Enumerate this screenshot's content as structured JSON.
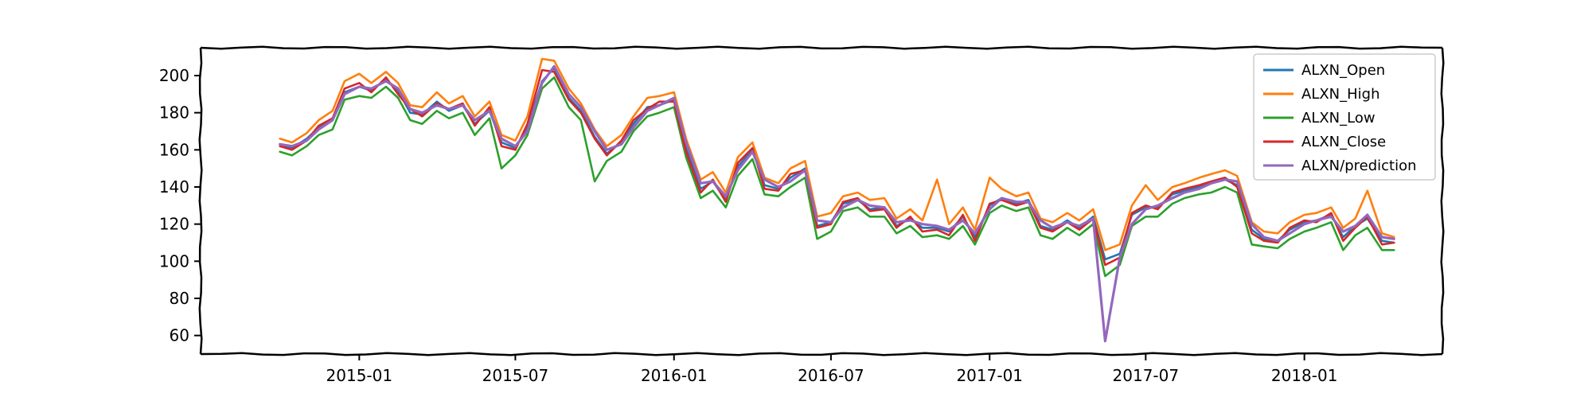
{
  "chart_data": {
    "type": "line",
    "title": "",
    "xlabel": "",
    "ylabel": "",
    "x_type": "date",
    "xlim": [
      "2014-07-01",
      "2018-06-10"
    ],
    "ylim": [
      50,
      215
    ],
    "x_ticks": [
      "2015-01",
      "2015-07",
      "2016-01",
      "2016-07",
      "2017-01",
      "2017-07",
      "2018-01"
    ],
    "y_ticks": [
      60,
      80,
      100,
      120,
      140,
      160,
      180,
      200
    ],
    "grid": false,
    "legend": {
      "position": "top-right"
    },
    "x": [
      "2014-10-01",
      "2014-10-15",
      "2014-11-01",
      "2014-11-15",
      "2014-12-01",
      "2014-12-15",
      "2015-01-01",
      "2015-01-15",
      "2015-02-01",
      "2015-02-15",
      "2015-03-01",
      "2015-03-15",
      "2015-04-01",
      "2015-04-15",
      "2015-05-01",
      "2015-05-15",
      "2015-06-01",
      "2015-06-15",
      "2015-07-01",
      "2015-07-15",
      "2015-08-01",
      "2015-08-15",
      "2015-09-01",
      "2015-09-15",
      "2015-10-01",
      "2015-10-15",
      "2015-11-01",
      "2015-11-15",
      "2015-12-01",
      "2015-12-15",
      "2016-01-01",
      "2016-01-15",
      "2016-02-01",
      "2016-02-15",
      "2016-03-01",
      "2016-03-15",
      "2016-04-01",
      "2016-04-15",
      "2016-05-01",
      "2016-05-15",
      "2016-06-01",
      "2016-06-15",
      "2016-07-01",
      "2016-07-15",
      "2016-08-01",
      "2016-08-15",
      "2016-09-01",
      "2016-09-15",
      "2016-10-01",
      "2016-10-15",
      "2016-11-01",
      "2016-11-15",
      "2016-12-01",
      "2016-12-15",
      "2017-01-01",
      "2017-01-15",
      "2017-02-01",
      "2017-02-15",
      "2017-03-01",
      "2017-03-15",
      "2017-04-01",
      "2017-04-15",
      "2017-05-01",
      "2017-05-15",
      "2017-06-01",
      "2017-06-15",
      "2017-07-01",
      "2017-07-15",
      "2017-08-01",
      "2017-08-15",
      "2017-09-01",
      "2017-09-15",
      "2017-10-01",
      "2017-10-15",
      "2017-11-01",
      "2017-11-15",
      "2017-12-01",
      "2017-12-15",
      "2018-01-01",
      "2018-01-15",
      "2018-02-01",
      "2018-02-15",
      "2018-03-01",
      "2018-03-15",
      "2018-04-01",
      "2018-04-15"
    ],
    "series": [
      {
        "name": "ALXN_Open",
        "color": "#1f77b4",
        "values": [
          163,
          161,
          166,
          172,
          176,
          191,
          194,
          192,
          198,
          192,
          180,
          179,
          186,
          181,
          184,
          174,
          181,
          164,
          161,
          172,
          197,
          204,
          188,
          181,
          167,
          158,
          164,
          174,
          183,
          184,
          187,
          161,
          139,
          143,
          133,
          151,
          160,
          141,
          139,
          145,
          150,
          119,
          121,
          131,
          133,
          128,
          129,
          119,
          123,
          118,
          118,
          116,
          124,
          113,
          130,
          134,
          131,
          133,
          119,
          117,
          122,
          118,
          124,
          101,
          104,
          125,
          129,
          129,
          136,
          138,
          140,
          142,
          144,
          141,
          117,
          112,
          111,
          117,
          121,
          122,
          125,
          113,
          119,
          123,
          111,
          110
        ]
      },
      {
        "name": "ALXN_High",
        "color": "#ff7f0e",
        "values": [
          166,
          164,
          169,
          176,
          181,
          197,
          201,
          196,
          202,
          196,
          184,
          183,
          191,
          185,
          189,
          178,
          186,
          168,
          165,
          178,
          209,
          208,
          193,
          185,
          171,
          162,
          168,
          178,
          188,
          189,
          191,
          166,
          144,
          148,
          137,
          156,
          164,
          145,
          142,
          150,
          154,
          124,
          126,
          135,
          137,
          133,
          134,
          123,
          128,
          122,
          144,
          120,
          129,
          117,
          145,
          139,
          135,
          137,
          123,
          121,
          126,
          122,
          128,
          106,
          109,
          130,
          141,
          133,
          140,
          142,
          145,
          147,
          149,
          146,
          121,
          116,
          115,
          121,
          125,
          126,
          129,
          118,
          123,
          138,
          115,
          113
        ]
      },
      {
        "name": "ALXN_Low",
        "color": "#2ca02c",
        "values": [
          159,
          157,
          162,
          168,
          171,
          187,
          189,
          188,
          194,
          188,
          176,
          174,
          181,
          177,
          180,
          168,
          177,
          150,
          157,
          168,
          193,
          199,
          183,
          176,
          143,
          154,
          159,
          170,
          178,
          180,
          183,
          156,
          134,
          138,
          129,
          146,
          155,
          136,
          135,
          140,
          145,
          112,
          116,
          127,
          129,
          124,
          124,
          115,
          119,
          113,
          114,
          112,
          119,
          109,
          126,
          130,
          127,
          129,
          114,
          112,
          118,
          114,
          120,
          92,
          98,
          119,
          124,
          124,
          131,
          134,
          136,
          137,
          140,
          137,
          109,
          108,
          107,
          112,
          116,
          118,
          121,
          106,
          114,
          118,
          106,
          106
        ]
      },
      {
        "name": "ALXN_Close",
        "color": "#d62728",
        "values": [
          162,
          160,
          165,
          173,
          177,
          193,
          196,
          191,
          199,
          190,
          182,
          178,
          185,
          182,
          185,
          173,
          183,
          162,
          160,
          174,
          203,
          202,
          187,
          180,
          166,
          157,
          165,
          176,
          182,
          186,
          186,
          159,
          137,
          144,
          132,
          153,
          161,
          139,
          138,
          147,
          149,
          118,
          120,
          132,
          134,
          127,
          128,
          118,
          124,
          116,
          117,
          114,
          125,
          111,
          131,
          133,
          130,
          132,
          118,
          116,
          121,
          117,
          123,
          98,
          102,
          126,
          130,
          128,
          137,
          139,
          141,
          143,
          145,
          140,
          115,
          111,
          110,
          118,
          122,
          121,
          126,
          111,
          118,
          124,
          109,
          110
        ]
      },
      {
        "name": "ALXN/prediction",
        "color": "#9467bd",
        "values": [
          163,
          162,
          165,
          171,
          176,
          190,
          194,
          193,
          197,
          193,
          182,
          180,
          184,
          182,
          184,
          176,
          181,
          166,
          162,
          170,
          196,
          205,
          190,
          183,
          170,
          160,
          163,
          172,
          181,
          184,
          188,
          164,
          142,
          143,
          135,
          149,
          159,
          144,
          140,
          143,
          149,
          122,
          121,
          129,
          133,
          130,
          129,
          121,
          122,
          120,
          119,
          117,
          122,
          115,
          128,
          134,
          132,
          132,
          122,
          118,
          121,
          119,
          123,
          57,
          102,
          120,
          128,
          130,
          134,
          137,
          139,
          142,
          144,
          143,
          120,
          113,
          111,
          115,
          120,
          122,
          124,
          116,
          119,
          125,
          113,
          112
        ]
      }
    ]
  }
}
